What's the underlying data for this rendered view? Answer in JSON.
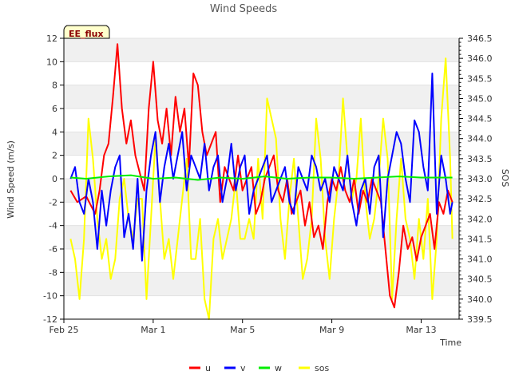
{
  "chart_data": {
    "type": "line",
    "title": "Wind Speeds",
    "xlabel": "Time",
    "ylabel": "Wind Speed (m/s)",
    "y2label": "SOS",
    "badge": "EE_flux",
    "xlim": [
      0,
      17.7
    ],
    "ylim": [
      -12,
      12
    ],
    "y2lim": [
      339.5,
      346.5
    ],
    "x_ticks": [
      {
        "label": "Feb 25",
        "value": 0
      },
      {
        "label": "Mar 1",
        "value": 4
      },
      {
        "label": "Mar 5",
        "value": 8
      },
      {
        "label": "Mar 9",
        "value": 12
      },
      {
        "label": "Mar 13",
        "value": 16
      }
    ],
    "y_ticks": [
      -12,
      -10,
      -8,
      -6,
      -4,
      -2,
      0,
      2,
      4,
      6,
      8,
      10,
      12
    ],
    "y_tick_labels": [
      "-12",
      "-10",
      "-8",
      "-6",
      "-4",
      "-2",
      "0",
      "2",
      "4",
      "6",
      "8",
      "10",
      "12"
    ],
    "y2_ticks": [
      339.5,
      340.0,
      340.5,
      341.0,
      341.5,
      342.0,
      342.5,
      343.0,
      343.5,
      344.0,
      344.5,
      345.0,
      345.5,
      346.0,
      346.5
    ],
    "y2_tick_labels": [
      "339.5",
      "340.0",
      "340.5",
      "341.0",
      "341.5",
      "342.0",
      "342.5",
      "343.0",
      "343.5",
      "344.0",
      "344.5",
      "345.0",
      "345.5",
      "346.0",
      "346.5"
    ],
    "grid": "horizontal bands",
    "legend_position": "bottom-center",
    "series": [
      {
        "name": "u",
        "color": "#ff0000",
        "axis": "left",
        "x": [
          0.3,
          0.6,
          1.0,
          1.4,
          1.6,
          1.8,
          2.0,
          2.2,
          2.4,
          2.6,
          2.8,
          3.0,
          3.2,
          3.4,
          3.6,
          3.8,
          4.0,
          4.2,
          4.4,
          4.6,
          4.8,
          5.0,
          5.2,
          5.4,
          5.6,
          5.8,
          6.0,
          6.2,
          6.4,
          6.6,
          6.8,
          7.0,
          7.2,
          7.4,
          7.6,
          7.8,
          8.0,
          8.2,
          8.4,
          8.6,
          8.8,
          9.0,
          9.2,
          9.4,
          9.6,
          9.8,
          10.0,
          10.2,
          10.4,
          10.6,
          10.8,
          11.0,
          11.2,
          11.4,
          11.6,
          11.8,
          12.0,
          12.2,
          12.4,
          12.6,
          12.8,
          13.0,
          13.2,
          13.4,
          13.6,
          13.8,
          14.0,
          14.2,
          14.4,
          14.6,
          14.8,
          15.0,
          15.2,
          15.4,
          15.6,
          15.8,
          16.0,
          16.2,
          16.4,
          16.6,
          16.8,
          17.0,
          17.2,
          17.4
        ],
        "values": [
          -1,
          -2,
          -1.5,
          -3,
          -1,
          2,
          3,
          7,
          11.5,
          6,
          3,
          5,
          2,
          0.5,
          -1,
          6,
          10,
          5,
          3,
          6,
          2,
          7,
          4,
          6,
          1,
          9,
          8,
          4,
          2,
          3,
          4,
          -2,
          1,
          0,
          -1,
          2,
          -1,
          0,
          1,
          -3,
          -2,
          0,
          1,
          2,
          -1,
          -2,
          0,
          -3,
          -2,
          -1,
          -4,
          -2,
          -5,
          -4,
          -6,
          -2,
          0,
          -1,
          1,
          -1,
          -2,
          0,
          -3,
          -1,
          -2,
          0,
          -1,
          -2,
          -6,
          -10,
          -11,
          -8,
          -4,
          -6,
          -5,
          -7,
          -5,
          -4,
          -3,
          -6,
          -2,
          -3,
          -1,
          -2
        ]
      },
      {
        "name": "v",
        "color": "#0000ff",
        "axis": "left",
        "x": [
          0.3,
          0.5,
          0.7,
          0.9,
          1.1,
          1.3,
          1.5,
          1.7,
          1.9,
          2.1,
          2.3,
          2.5,
          2.7,
          2.9,
          3.1,
          3.3,
          3.5,
          3.7,
          3.9,
          4.1,
          4.3,
          4.5,
          4.7,
          4.9,
          5.1,
          5.3,
          5.5,
          5.7,
          5.9,
          6.1,
          6.3,
          6.5,
          6.7,
          6.9,
          7.1,
          7.3,
          7.5,
          7.7,
          7.9,
          8.1,
          8.3,
          8.5,
          8.7,
          8.9,
          9.1,
          9.3,
          9.5,
          9.7,
          9.9,
          10.1,
          10.3,
          10.5,
          10.7,
          10.9,
          11.1,
          11.3,
          11.5,
          11.7,
          11.9,
          12.1,
          12.3,
          12.5,
          12.7,
          12.9,
          13.1,
          13.3,
          13.5,
          13.7,
          13.9,
          14.1,
          14.3,
          14.5,
          14.7,
          14.9,
          15.1,
          15.3,
          15.5,
          15.7,
          15.9,
          16.1,
          16.3,
          16.5,
          16.7,
          16.9,
          17.1,
          17.3,
          17.4
        ],
        "values": [
          0,
          1,
          -2,
          -3,
          0,
          -2,
          -6,
          -1,
          -4,
          -1,
          1,
          2,
          -5,
          -3,
          -6,
          0,
          -7,
          -1,
          2,
          4,
          -2,
          1,
          3,
          0,
          2,
          4,
          -1,
          2,
          1,
          0,
          3,
          -1,
          1,
          2,
          -2,
          0,
          3,
          -1,
          1,
          2,
          -3,
          -1,
          0,
          1,
          2,
          -2,
          -1,
          0,
          1,
          -2,
          -3,
          1,
          0,
          -1,
          2,
          1,
          -1,
          0,
          -2,
          1,
          0,
          -1,
          2,
          -2,
          -4,
          -1,
          0,
          -3,
          1,
          2,
          -5,
          0,
          2,
          4,
          3,
          0,
          -2,
          5,
          4,
          1,
          -1,
          9,
          -3,
          2,
          0,
          -3,
          -2
        ]
      },
      {
        "name": "w",
        "color": "#00ee00",
        "axis": "left",
        "x": [
          0.3,
          1,
          2,
          3,
          4,
          5,
          6,
          7,
          8,
          9,
          10,
          11,
          12,
          13,
          14,
          15,
          16,
          17,
          17.4
        ],
        "values": [
          0.1,
          0,
          0.2,
          0.3,
          0,
          0.1,
          -0.1,
          0.1,
          0,
          0.2,
          0,
          0.1,
          0.1,
          0,
          0.1,
          0.2,
          0.1,
          0.1,
          0.1
        ]
      },
      {
        "name": "sos",
        "color": "#ffff00",
        "axis": "right",
        "x": [
          0.3,
          0.5,
          0.7,
          0.9,
          1.1,
          1.3,
          1.5,
          1.7,
          1.9,
          2.1,
          2.3,
          2.5,
          2.7,
          2.9,
          3.1,
          3.3,
          3.5,
          3.7,
          3.9,
          4.1,
          4.3,
          4.5,
          4.7,
          4.9,
          5.1,
          5.3,
          5.5,
          5.7,
          5.9,
          6.1,
          6.3,
          6.5,
          6.7,
          6.9,
          7.1,
          7.3,
          7.5,
          7.7,
          7.9,
          8.1,
          8.3,
          8.5,
          8.7,
          8.9,
          9.1,
          9.3,
          9.5,
          9.7,
          9.9,
          10.1,
          10.3,
          10.5,
          10.7,
          10.9,
          11.1,
          11.3,
          11.5,
          11.7,
          11.9,
          12.1,
          12.3,
          12.5,
          12.7,
          12.9,
          13.1,
          13.3,
          13.5,
          13.7,
          13.9,
          14.1,
          14.3,
          14.5,
          14.7,
          14.9,
          15.1,
          15.3,
          15.5,
          15.7,
          15.9,
          16.1,
          16.3,
          16.5,
          16.7,
          16.9,
          17.1,
          17.3,
          17.4
        ],
        "values": [
          341.5,
          341,
          340,
          341.5,
          344.5,
          343.5,
          342,
          341,
          341.5,
          340.5,
          341,
          342.5,
          343,
          342,
          341.5,
          342.5,
          342.5,
          340,
          342,
          344,
          342.5,
          341,
          341.5,
          340.5,
          341.5,
          342.5,
          343.5,
          341,
          341,
          342,
          340,
          339.5,
          341.5,
          342,
          341,
          341.5,
          342,
          343,
          341.5,
          341.5,
          342,
          341.5,
          343.5,
          342,
          345,
          344.5,
          344,
          342,
          341,
          342.5,
          343.5,
          342,
          340.5,
          341,
          342,
          344.5,
          343.5,
          341.5,
          340.5,
          342,
          343,
          345,
          343.5,
          342.5,
          343,
          344.5,
          342.5,
          341.5,
          342,
          343,
          344.5,
          343.5,
          340,
          342,
          343.5,
          342,
          341.5,
          340.5,
          342,
          341,
          342.5,
          340,
          341.5,
          344.5,
          346,
          343.5,
          341.5
        ]
      }
    ]
  }
}
